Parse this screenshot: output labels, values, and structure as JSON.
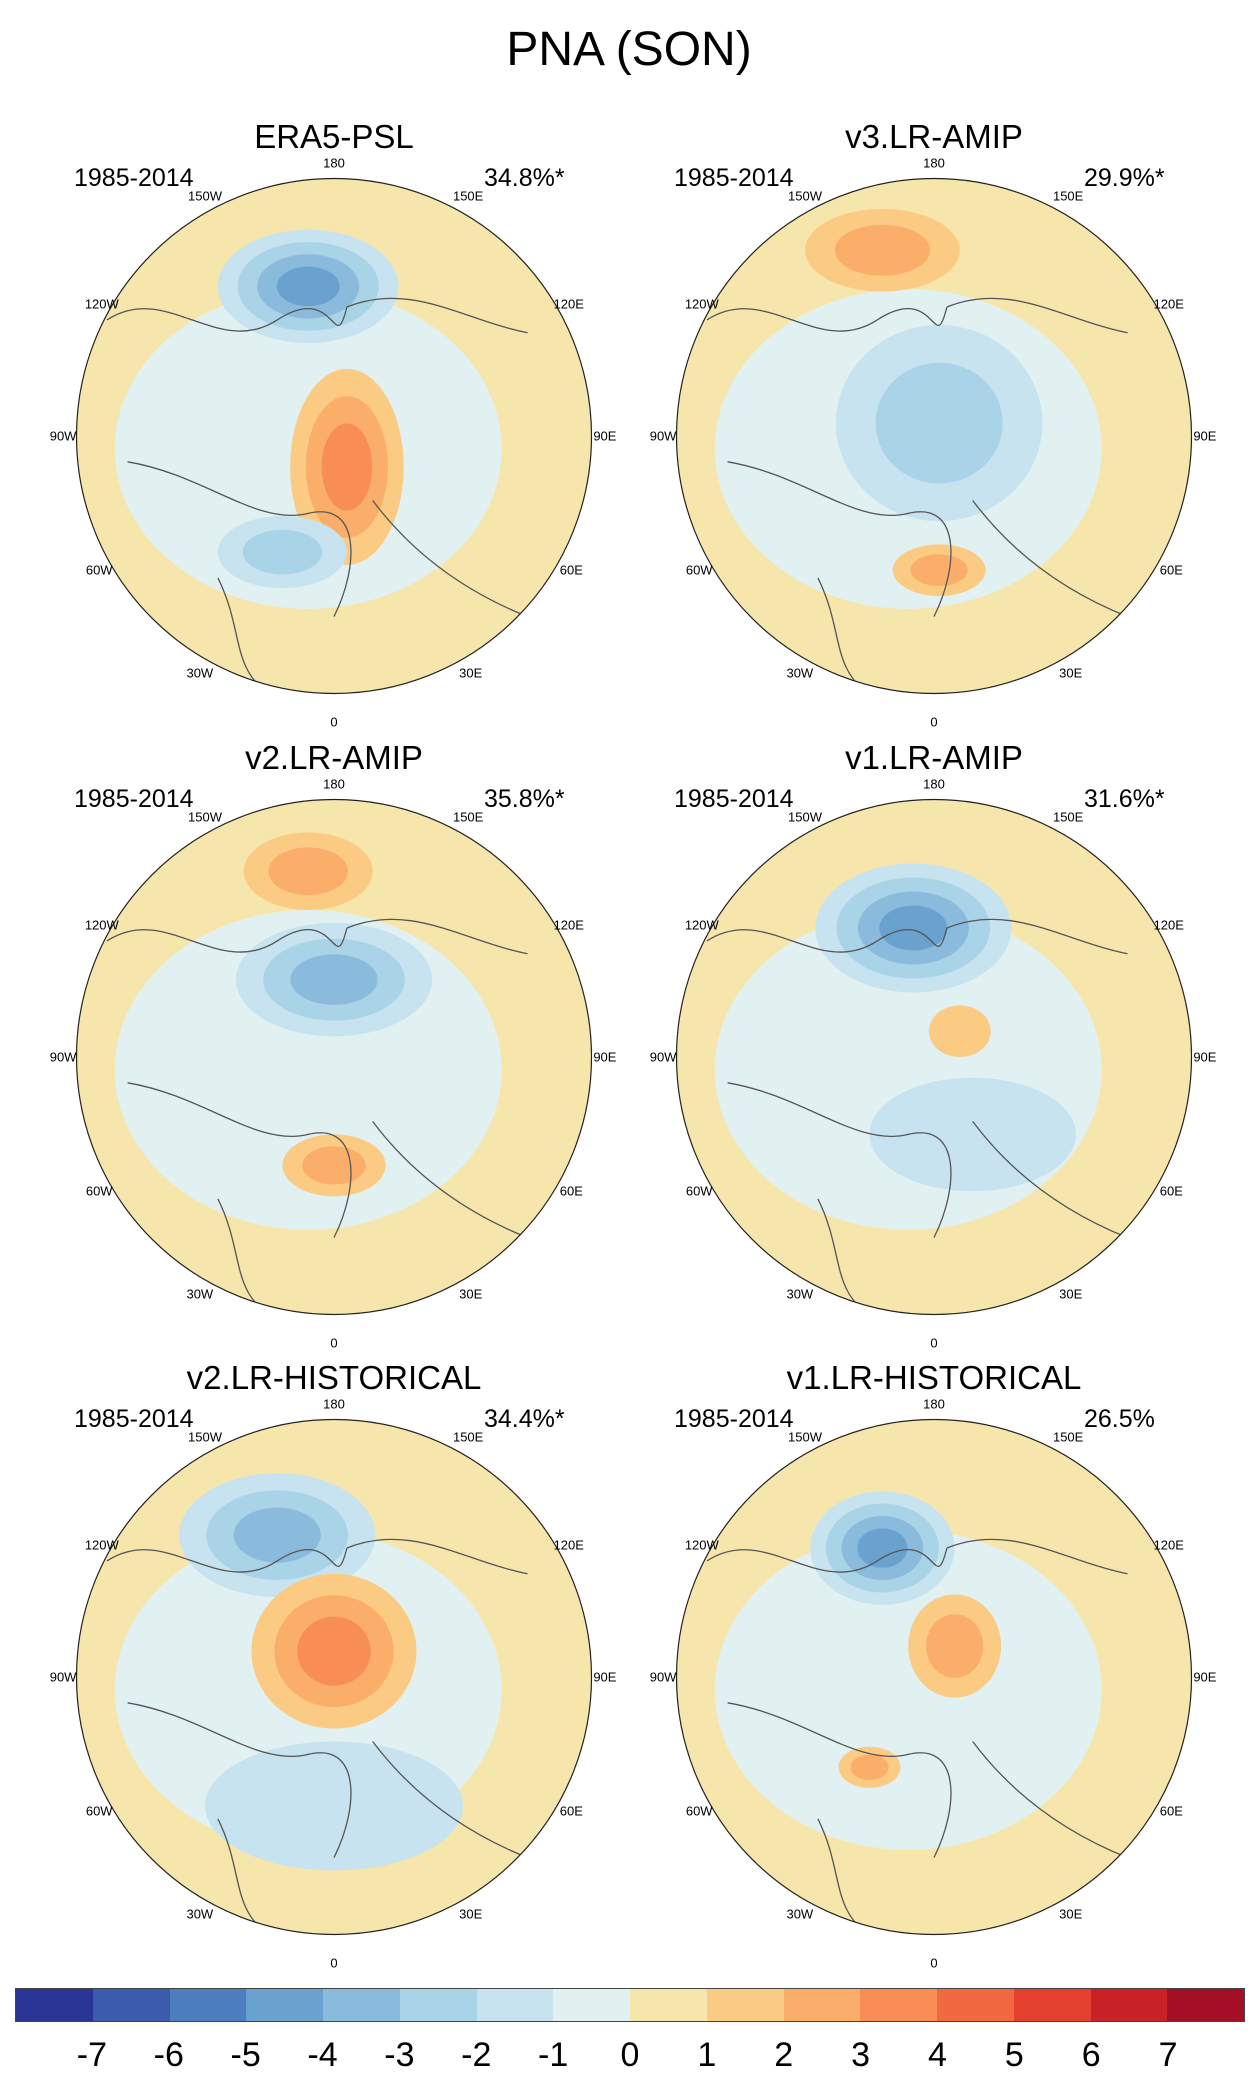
{
  "title": "PNA (SON)",
  "panels": [
    {
      "name": "ERA5-PSL",
      "period": "1985-2014",
      "variance": "34.8%*"
    },
    {
      "name": "v3.LR-AMIP",
      "period": "1985-2014",
      "variance": "29.9%*"
    },
    {
      "name": "v2.LR-AMIP",
      "period": "1985-2014",
      "variance": "35.8%*"
    },
    {
      "name": "v1.LR-AMIP",
      "period": "1985-2014",
      "variance": "31.6%*"
    },
    {
      "name": "v2.LR-HISTORICAL",
      "period": "1985-2014",
      "variance": "34.4%*"
    },
    {
      "name": "v1.LR-HISTORICAL",
      "period": "1985-2014",
      "variance": "26.5%"
    }
  ],
  "longitude_labels": {
    "top": "180",
    "bottom": "0",
    "upper_left": "150W",
    "upper_right": "150E",
    "left_high": "120W",
    "right_high": "120E",
    "left": "90W",
    "right": "90E",
    "left_low": "60W",
    "right_low": "60E",
    "lower_left": "30W",
    "lower_right": "30E"
  },
  "colorbar": {
    "colors": [
      "#2b3596",
      "#3b5cad",
      "#4d7fc0",
      "#6aa2cf",
      "#8bbbdc",
      "#a9d3e6",
      "#c6e3ef",
      "#e1f0f1",
      "#f6e6ab",
      "#fbcb83",
      "#fbad6a",
      "#f98d56",
      "#f26841",
      "#e34030",
      "#c82227",
      "#a50f25"
    ],
    "ticks": [
      "-7",
      "-6",
      "-5",
      "-4",
      "-3",
      "-2",
      "-1",
      "0",
      "1",
      "2",
      "3",
      "4",
      "5",
      "6",
      "7"
    ]
  }
}
